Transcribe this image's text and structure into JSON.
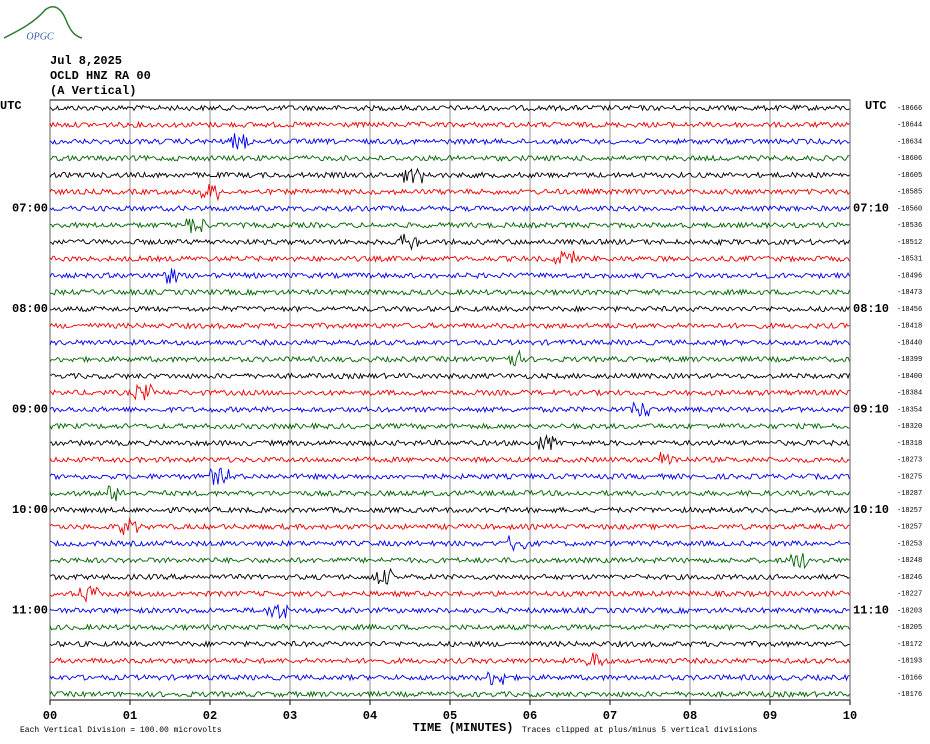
{
  "logo": "OPGC",
  "date": "Jul 8,2025",
  "station": "OCLD HNZ RA 00",
  "component": "(A Vertical)",
  "utc_left": "UTC",
  "utc_right": "UTC",
  "left_labels": [
    null,
    null,
    null,
    null,
    null,
    null,
    "07:00",
    null,
    null,
    null,
    null,
    null,
    "08:00",
    null,
    null,
    null,
    null,
    null,
    "09:00",
    null,
    null,
    null,
    null,
    null,
    "10:00",
    null,
    null,
    null,
    null,
    null,
    "11:00",
    null,
    null,
    null,
    null,
    null
  ],
  "right_labels": [
    null,
    null,
    null,
    null,
    null,
    null,
    "07:10",
    null,
    null,
    null,
    null,
    null,
    "08:10",
    null,
    null,
    null,
    null,
    null,
    "09:10",
    null,
    null,
    null,
    null,
    null,
    "10:10",
    null,
    null,
    null,
    null,
    null,
    "11:10",
    null,
    null,
    null,
    null,
    null
  ],
  "trace_offsets": [
    -18666,
    -18644,
    -18634,
    -18606,
    -18605,
    -18585,
    -18560,
    -18536,
    -18512,
    -18531,
    -18496,
    -18473,
    -18456,
    -18418,
    -18440,
    -18399,
    -18400,
    -18384,
    -18354,
    -18320,
    -18318,
    -18273,
    -18275,
    -18287,
    -18257,
    -18257,
    -18253,
    -18248,
    -18246,
    -18227,
    -18203,
    -18205,
    -18172,
    -18193,
    -18166,
    -18176
  ],
  "trace_colors": [
    "#000000",
    "#ee0000",
    "#0000ee",
    "#006400"
  ],
  "xlim": [
    0,
    10
  ],
  "xticks": [
    {
      "value": 0,
      "label": "00"
    },
    {
      "value": 1,
      "label": "01"
    },
    {
      "value": 2,
      "label": "02"
    },
    {
      "value": 3,
      "label": "03"
    },
    {
      "value": 4,
      "label": "04"
    },
    {
      "value": 5,
      "label": "05"
    },
    {
      "value": 6,
      "label": "06"
    },
    {
      "value": 7,
      "label": "07"
    },
    {
      "value": 8,
      "label": "08"
    },
    {
      "value": 9,
      "label": "09"
    },
    {
      "value": 10,
      "label": "10"
    }
  ],
  "x_label": "TIME (MINUTES)",
  "footer_left": "Each Vertical Division =  100.00 microvolts",
  "footer_right": "Traces clipped at plus/minus 5 vertical divisions"
}
